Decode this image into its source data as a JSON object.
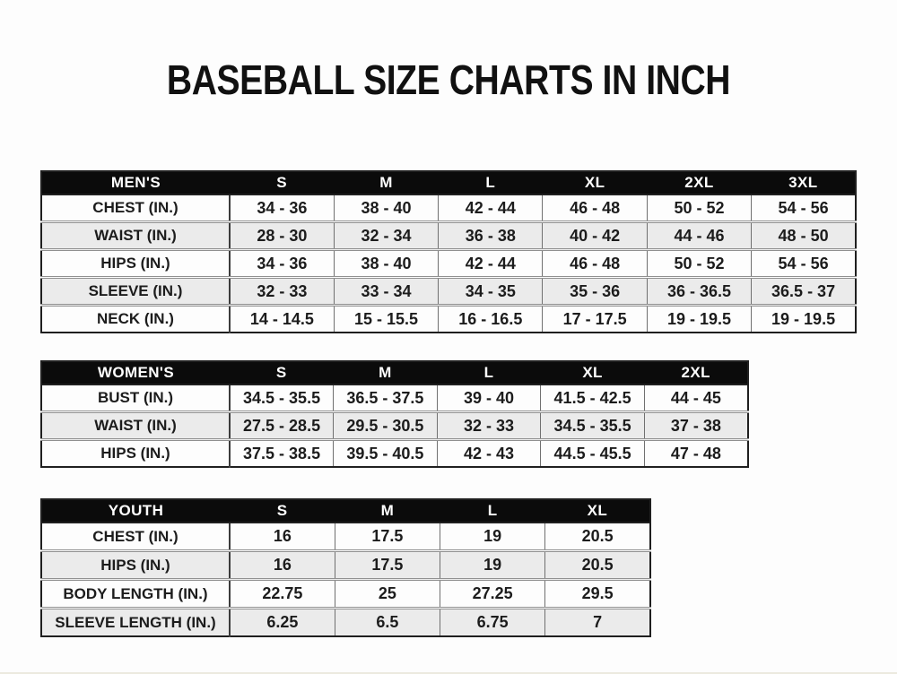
{
  "title": "BASEBALL SIZE CHARTS IN INCH",
  "colors": {
    "header_bg": "#0b0b0b",
    "header_text": "#ffffff",
    "row_alt_bg": "#ebebeb",
    "row_bg": "#fdfdfd",
    "text": "#1c1c1c"
  },
  "tables": {
    "mens": {
      "header": [
        "MEN'S",
        "S",
        "M",
        "L",
        "XL",
        "2XL",
        "3XL"
      ],
      "rows": [
        {
          "label": "CHEST (IN.)",
          "values": [
            "34 - 36",
            "38 - 40",
            "42 - 44",
            "46 - 48",
            "50 - 52",
            "54 - 56"
          ]
        },
        {
          "label": "WAIST (IN.)",
          "values": [
            "28 - 30",
            "32 - 34",
            "36 - 38",
            "40 - 42",
            "44 - 46",
            "48 - 50"
          ]
        },
        {
          "label": "HIPS (IN.)",
          "values": [
            "34 - 36",
            "38 - 40",
            "42 - 44",
            "46 - 48",
            "50 - 52",
            "54 - 56"
          ]
        },
        {
          "label": "SLEEVE (IN.)",
          "values": [
            "32 - 33",
            "33 - 34",
            "34 - 35",
            "35 - 36",
            "36 - 36.5",
            "36.5 - 37"
          ]
        },
        {
          "label": "NECK (IN.)",
          "values": [
            "14 - 14.5",
            "15 - 15.5",
            "16 - 16.5",
            "17 - 17.5",
            "19 - 19.5",
            "19 - 19.5"
          ]
        }
      ]
    },
    "womens": {
      "header": [
        "WOMEN'S",
        "S",
        "M",
        "L",
        "XL",
        "2XL"
      ],
      "rows": [
        {
          "label": "BUST (IN.)",
          "values": [
            "34.5 - 35.5",
            "36.5 - 37.5",
            "39 - 40",
            "41.5 - 42.5",
            "44 - 45"
          ]
        },
        {
          "label": "WAIST (IN.)",
          "values": [
            "27.5 - 28.5",
            "29.5 - 30.5",
            "32 - 33",
            "34.5 - 35.5",
            "37 - 38"
          ]
        },
        {
          "label": "HIPS (IN.)",
          "values": [
            "37.5 - 38.5",
            "39.5 - 40.5",
            "42 - 43",
            "44.5 - 45.5",
            "47 - 48"
          ]
        }
      ]
    },
    "youth": {
      "header": [
        "YOUTH",
        "S",
        "M",
        "L",
        "XL"
      ],
      "rows": [
        {
          "label": "CHEST (IN.)",
          "values": [
            "16",
            "17.5",
            "19",
            "20.5"
          ]
        },
        {
          "label": "HIPS (IN.)",
          "values": [
            "16",
            "17.5",
            "19",
            "20.5"
          ]
        },
        {
          "label": "BODY LENGTH (IN.)",
          "values": [
            "22.75",
            "25",
            "27.25",
            "29.5"
          ]
        },
        {
          "label": "SLEEVE LENGTH (IN.)",
          "values": [
            "6.25",
            "6.5",
            "6.75",
            "7"
          ]
        }
      ]
    }
  }
}
